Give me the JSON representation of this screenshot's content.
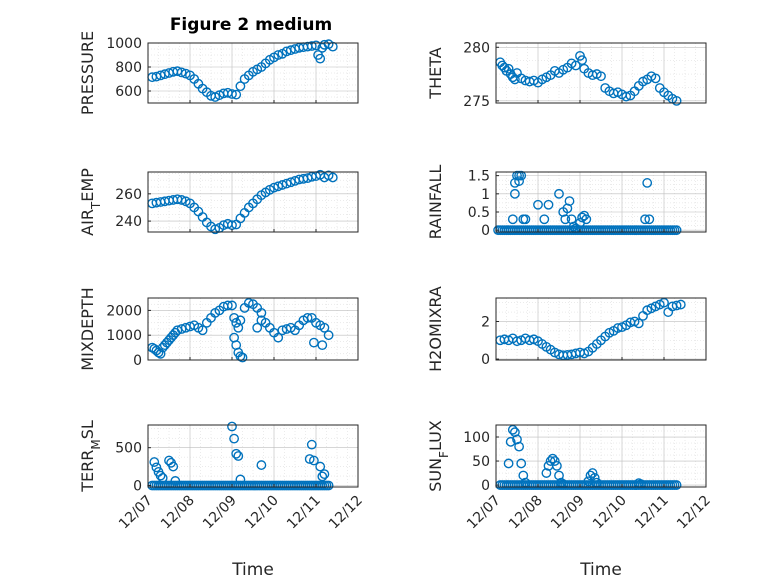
{
  "figure": {
    "title": "Figure 2 medium",
    "marker_color": "#0072BD",
    "x_tick_labels": [
      "12/07",
      "12/08",
      "12/09",
      "12/10",
      "12/11",
      "12/12"
    ],
    "x_label": "Time"
  },
  "chart_data": [
    {
      "type": "scatter",
      "title": "Figure 2 medium",
      "ylabel": "PRESSURE",
      "xlabel": "",
      "xlim": [
        0,
        5
      ],
      "ylim": [
        500,
        1000
      ],
      "yticks": [
        600,
        800,
        1000
      ],
      "ytick_labels": [
        "600",
        "800",
        "1000"
      ],
      "xticks": [
        0,
        1,
        2,
        3,
        4,
        5
      ],
      "grid": true,
      "x": [
        0.1,
        0.2,
        0.3,
        0.4,
        0.5,
        0.6,
        0.7,
        0.8,
        0.9,
        1.0,
        1.1,
        1.2,
        1.3,
        1.4,
        1.5,
        1.6,
        1.7,
        1.8,
        1.9,
        2.0,
        2.1,
        2.2,
        2.3,
        2.4,
        2.5,
        2.6,
        2.7,
        2.8,
        2.9,
        3.0,
        3.1,
        3.2,
        3.3,
        3.4,
        3.5,
        3.6,
        3.7,
        3.8,
        3.9,
        4.0,
        4.05,
        4.1,
        4.15,
        4.2,
        4.3,
        4.4
      ],
      "y": [
        715,
        720,
        730,
        740,
        750,
        760,
        765,
        755,
        745,
        730,
        700,
        660,
        620,
        590,
        560,
        550,
        565,
        580,
        585,
        575,
        570,
        640,
        700,
        730,
        760,
        780,
        800,
        830,
        860,
        880,
        900,
        910,
        930,
        940,
        950,
        960,
        965,
        970,
        975,
        980,
        900,
        870,
        960,
        985,
        990,
        970
      ]
    },
    {
      "type": "scatter",
      "ylabel": "THETA",
      "xlabel": "",
      "xlim": [
        0,
        5
      ],
      "ylim": [
        274.8,
        280.4
      ],
      "yticks": [
        275,
        280
      ],
      "ytick_labels": [
        "275",
        "280"
      ],
      "xticks": [
        0,
        1,
        2,
        3,
        4,
        5
      ],
      "grid": true,
      "x": [
        0.1,
        0.15,
        0.2,
        0.25,
        0.3,
        0.35,
        0.4,
        0.45,
        0.5,
        0.6,
        0.7,
        0.8,
        0.9,
        1.0,
        1.1,
        1.2,
        1.3,
        1.4,
        1.5,
        1.6,
        1.7,
        1.8,
        1.9,
        2.0,
        2.05,
        2.1,
        2.2,
        2.3,
        2.4,
        2.5,
        2.6,
        2.7,
        2.8,
        2.9,
        3.0,
        3.1,
        3.2,
        3.3,
        3.4,
        3.5,
        3.6,
        3.7,
        3.8,
        3.9,
        4.0,
        4.1,
        4.2,
        4.3
      ],
      "y": [
        278.6,
        278.3,
        278.1,
        277.8,
        278.0,
        277.5,
        277.2,
        277.0,
        277.6,
        277.1,
        276.9,
        276.8,
        276.9,
        276.7,
        277.0,
        277.2,
        277.4,
        277.8,
        277.6,
        277.9,
        278.1,
        278.5,
        278.3,
        279.2,
        278.8,
        278.0,
        277.6,
        277.4,
        277.5,
        277.3,
        276.2,
        275.9,
        275.7,
        275.8,
        275.6,
        275.4,
        275.5,
        275.9,
        276.4,
        276.8,
        277.0,
        277.3,
        277.1,
        276.2,
        275.8,
        275.5,
        275.2,
        275.0
      ]
    },
    {
      "type": "scatter",
      "ylabel": "AIR_TEMP",
      "xlabel": "",
      "xlim": [
        0,
        5
      ],
      "ylim": [
        232,
        276
      ],
      "yticks": [
        240,
        260
      ],
      "ytick_labels": [
        "240",
        "260"
      ],
      "xticks": [
        0,
        1,
        2,
        3,
        4,
        5
      ],
      "grid": true,
      "x": [
        0.1,
        0.2,
        0.3,
        0.4,
        0.5,
        0.6,
        0.7,
        0.8,
        0.9,
        1.0,
        1.1,
        1.2,
        1.3,
        1.4,
        1.5,
        1.6,
        1.7,
        1.8,
        1.9,
        2.0,
        2.1,
        2.2,
        2.3,
        2.4,
        2.5,
        2.6,
        2.7,
        2.8,
        2.9,
        3.0,
        3.1,
        3.2,
        3.3,
        3.4,
        3.5,
        3.6,
        3.7,
        3.8,
        3.9,
        4.0,
        4.1,
        4.2,
        4.3,
        4.4
      ],
      "y": [
        253,
        253.5,
        254,
        254.5,
        255,
        255.5,
        256,
        255.5,
        254.5,
        253,
        250,
        247,
        243,
        239,
        236,
        234,
        235,
        237,
        238,
        237,
        237.5,
        242,
        246,
        250,
        253,
        256,
        259,
        261,
        263,
        264.5,
        265.5,
        266.5,
        267.5,
        268.5,
        269.5,
        270.5,
        271,
        271.5,
        272.5,
        273,
        274,
        272,
        273.5,
        272
      ]
    },
    {
      "type": "scatter",
      "ylabel": "RAINFALL",
      "xlabel": "",
      "xlim": [
        0,
        5
      ],
      "ylim": [
        -0.05,
        1.6
      ],
      "yticks": [
        0,
        0.5,
        1,
        1.5
      ],
      "ytick_labels": [
        "0",
        "0.5",
        "1",
        "1.5"
      ],
      "xticks": [
        0,
        1,
        2,
        3,
        4,
        5
      ],
      "grid": true,
      "x": [
        0.05,
        0.1,
        0.15,
        0.2,
        0.25,
        0.3,
        0.35,
        0.4,
        0.45,
        0.5,
        0.55,
        0.6,
        0.65,
        0.7,
        0.75,
        0.8,
        0.85,
        0.9,
        0.95,
        1.0,
        1.05,
        1.1,
        1.15,
        1.2,
        1.25,
        1.3,
        1.35,
        1.4,
        1.45,
        1.5,
        1.55,
        1.6,
        1.65,
        1.7,
        1.75,
        1.8,
        1.85,
        1.9,
        1.95,
        2.0,
        2.05,
        2.1,
        2.15,
        2.2,
        2.25,
        2.3,
        2.35,
        2.4,
        2.45,
        2.5,
        2.55,
        2.6,
        2.65,
        2.7,
        2.75,
        2.8,
        2.85,
        2.9,
        2.95,
        3.0,
        3.05,
        3.1,
        3.15,
        3.2,
        3.25,
        3.3,
        3.35,
        3.4,
        3.45,
        3.5,
        3.55,
        3.6,
        3.65,
        3.7,
        3.75,
        3.8,
        3.85,
        3.9,
        3.95,
        4.0,
        4.05,
        4.1,
        4.15,
        4.2,
        4.25,
        4.3,
        0.45,
        0.5,
        0.55,
        0.6,
        0.65,
        0.7,
        0.4,
        0.45,
        0.55,
        1.0,
        1.15,
        1.25,
        1.5,
        1.6,
        1.7,
        1.75,
        1.8,
        1.85,
        1.65,
        1.9,
        2.0,
        2.05,
        2.1,
        2.15,
        3.6,
        3.65,
        3.55
      ],
      "y": [
        0,
        0,
        0,
        0,
        0,
        0,
        0,
        0,
        0,
        0,
        0,
        0,
        0,
        0,
        0,
        0,
        0,
        0,
        0,
        0,
        0,
        0,
        0,
        0,
        0,
        0,
        0,
        0,
        0,
        0,
        0,
        0,
        0,
        0,
        0,
        0,
        0,
        0,
        0,
        0,
        0,
        0,
        0,
        0,
        0,
        0,
        0,
        0,
        0,
        0,
        0,
        0,
        0,
        0,
        0,
        0,
        0,
        0,
        0,
        0,
        0,
        0,
        0,
        0,
        0,
        0,
        0,
        0,
        0,
        0,
        0,
        0,
        0,
        0,
        0,
        0,
        0,
        0,
        0,
        0,
        0,
        0,
        0,
        0,
        0,
        0,
        1.3,
        1.5,
        1.5,
        1.5,
        0.3,
        0.3,
        0.3,
        1.0,
        1.35,
        0.7,
        0.3,
        0.7,
        1.0,
        0.5,
        0.6,
        0.8,
        0.3,
        0.1,
        0.3,
        0.05,
        0.2,
        0.35,
        0.4,
        0.3,
        1.3,
        0.3,
        0.3
      ]
    },
    {
      "type": "scatter",
      "ylabel": "MIXDEPTH",
      "xlabel": "",
      "xlim": [
        0,
        5
      ],
      "ylim": [
        0,
        2500
      ],
      "yticks": [
        0,
        1000,
        2000
      ],
      "ytick_labels": [
        "0",
        "1000",
        "2000"
      ],
      "xticks": [
        0,
        1,
        2,
        3,
        4,
        5
      ],
      "grid": true,
      "x": [
        0.1,
        0.15,
        0.2,
        0.25,
        0.3,
        0.35,
        0.4,
        0.45,
        0.5,
        0.55,
        0.6,
        0.65,
        0.7,
        0.8,
        0.9,
        1.0,
        1.1,
        1.2,
        1.3,
        1.4,
        1.5,
        1.6,
        1.7,
        1.8,
        1.9,
        2.0,
        2.05,
        2.1,
        2.15,
        2.2,
        2.3,
        2.4,
        2.5,
        2.6,
        2.7,
        2.8,
        2.9,
        3.0,
        3.1,
        3.2,
        3.3,
        3.4,
        3.5,
        3.6,
        3.7,
        3.8,
        3.9,
        4.0,
        4.1,
        4.2,
        4.3,
        2.05,
        2.1,
        2.15,
        2.2,
        2.25,
        2.6,
        2.7,
        3.95,
        4.15
      ],
      "y": [
        500,
        450,
        380,
        300,
        250,
        500,
        600,
        700,
        800,
        900,
        1000,
        1100,
        1200,
        1250,
        1300,
        1350,
        1400,
        1300,
        1200,
        1500,
        1700,
        1900,
        2000,
        2150,
        2200,
        2200,
        1700,
        1500,
        1300,
        1600,
        2100,
        2300,
        2250,
        2100,
        1900,
        1500,
        1300,
        1100,
        900,
        1200,
        1250,
        1300,
        1200,
        1400,
        1600,
        1700,
        1700,
        1500,
        1400,
        1300,
        1000,
        900,
        600,
        300,
        150,
        100,
        1300,
        1600,
        700,
        600
      ]
    },
    {
      "type": "scatter",
      "ylabel": "H2OMIXRA",
      "xlabel": "",
      "xlim": [
        0,
        5
      ],
      "ylim": [
        -0.05,
        3.25
      ],
      "yticks": [
        0,
        2
      ],
      "ytick_labels": [
        "0",
        "2"
      ],
      "xticks": [
        0,
        1,
        2,
        3,
        4,
        5
      ],
      "grid": true,
      "x": [
        0.1,
        0.2,
        0.3,
        0.4,
        0.5,
        0.6,
        0.7,
        0.8,
        0.9,
        1.0,
        1.1,
        1.2,
        1.3,
        1.4,
        1.5,
        1.6,
        1.7,
        1.8,
        1.9,
        2.0,
        2.1,
        2.2,
        2.3,
        2.4,
        2.5,
        2.6,
        2.7,
        2.8,
        2.9,
        3.0,
        3.1,
        3.2,
        3.3,
        3.4,
        3.5,
        3.6,
        3.7,
        3.8,
        3.9,
        4.0,
        4.1,
        4.2,
        4.3,
        4.4
      ],
      "y": [
        1.0,
        1.05,
        1.0,
        1.1,
        0.95,
        1.0,
        1.1,
        1.0,
        1.05,
        0.95,
        0.8,
        0.65,
        0.5,
        0.35,
        0.25,
        0.2,
        0.22,
        0.25,
        0.3,
        0.35,
        0.3,
        0.4,
        0.6,
        0.8,
        1.0,
        1.2,
        1.4,
        1.5,
        1.65,
        1.7,
        1.8,
        1.95,
        2.0,
        1.9,
        2.3,
        2.6,
        2.7,
        2.8,
        2.9,
        3.0,
        2.5,
        2.8,
        2.85,
        2.9
      ]
    },
    {
      "type": "scatter",
      "ylabel": "TERR_MSL",
      "xlabel": "Time",
      "xlim": [
        0,
        5
      ],
      "ylim": [
        -20,
        800
      ],
      "yticks": [
        0,
        500
      ],
      "ytick_labels": [
        "0",
        "500"
      ],
      "xticks": [
        0,
        1,
        2,
        3,
        4,
        5
      ],
      "xtick_labels": [
        "12/07",
        "12/08",
        "12/09",
        "12/10",
        "12/11",
        "12/12"
      ],
      "grid": true,
      "x": [
        0.1,
        0.15,
        0.2,
        0.25,
        0.3,
        0.35,
        0.4,
        0.45,
        0.5,
        0.55,
        0.6,
        0.65,
        0.7,
        0.75,
        0.8,
        0.85,
        0.9,
        0.95,
        1.0,
        1.05,
        1.1,
        1.15,
        1.2,
        1.25,
        1.3,
        1.35,
        1.4,
        1.45,
        1.5,
        1.55,
        1.6,
        1.65,
        1.7,
        1.75,
        1.8,
        1.85,
        1.9,
        1.95,
        2.0,
        2.05,
        2.1,
        2.15,
        2.2,
        2.25,
        2.3,
        2.35,
        2.4,
        2.45,
        2.5,
        2.55,
        2.6,
        2.65,
        2.7,
        2.75,
        2.8,
        2.85,
        2.9,
        2.95,
        3.0,
        3.05,
        3.1,
        3.15,
        3.2,
        3.25,
        3.3,
        3.35,
        3.4,
        3.45,
        3.5,
        3.55,
        3.6,
        3.65,
        3.7,
        3.75,
        3.8,
        3.85,
        3.9,
        3.95,
        4.0,
        4.05,
        4.1,
        4.15,
        4.2,
        4.25,
        4.3,
        0.15,
        0.2,
        0.25,
        0.3,
        0.35,
        0.5,
        0.55,
        0.6,
        0.65,
        2.0,
        2.05,
        2.1,
        2.15,
        2.2,
        2.7,
        3.85,
        3.9,
        3.95,
        4.1,
        4.15,
        4.2
      ],
      "y": [
        0,
        0,
        0,
        0,
        0,
        0,
        0,
        0,
        0,
        0,
        0,
        0,
        0,
        0,
        0,
        0,
        0,
        0,
        0,
        0,
        0,
        0,
        0,
        0,
        0,
        0,
        0,
        0,
        0,
        0,
        0,
        0,
        0,
        0,
        0,
        0,
        0,
        0,
        0,
        0,
        0,
        0,
        0,
        0,
        0,
        0,
        0,
        0,
        0,
        0,
        0,
        0,
        0,
        0,
        0,
        0,
        0,
        0,
        0,
        0,
        0,
        0,
        0,
        0,
        0,
        0,
        0,
        0,
        0,
        0,
        0,
        0,
        0,
        0,
        0,
        0,
        0,
        0,
        0,
        0,
        0,
        0,
        0,
        0,
        0,
        310,
        240,
        180,
        130,
        100,
        330,
        300,
        250,
        60,
        780,
        620,
        420,
        390,
        80,
        270,
        350,
        540,
        330,
        250,
        120,
        150
      ]
    },
    {
      "type": "scatter",
      "ylabel": "SUN_FLUX",
      "xlabel": "Time",
      "xlim": [
        0,
        5
      ],
      "ylim": [
        -4,
        125
      ],
      "yticks": [
        0,
        50,
        100
      ],
      "ytick_labels": [
        "0",
        "50",
        "100"
      ],
      "xticks": [
        0,
        1,
        2,
        3,
        4,
        5
      ],
      "xtick_labels": [
        "12/07",
        "12/08",
        "12/09",
        "12/10",
        "12/11",
        "12/12"
      ],
      "grid": true,
      "x": [
        0.1,
        0.15,
        0.2,
        0.25,
        0.3,
        0.35,
        0.4,
        0.45,
        0.5,
        0.55,
        0.6,
        0.65,
        0.7,
        0.75,
        0.8,
        0.85,
        0.9,
        0.95,
        1.0,
        1.05,
        1.1,
        1.15,
        1.2,
        1.25,
        1.3,
        1.35,
        1.4,
        1.45,
        1.5,
        1.55,
        1.6,
        1.65,
        1.7,
        1.75,
        1.8,
        1.85,
        1.9,
        1.95,
        2.0,
        2.05,
        2.1,
        2.15,
        2.2,
        2.25,
        2.3,
        2.35,
        2.4,
        2.45,
        2.5,
        2.55,
        2.6,
        2.65,
        2.7,
        2.75,
        2.8,
        2.85,
        2.9,
        2.95,
        3.0,
        3.05,
        3.1,
        3.15,
        3.2,
        3.25,
        3.3,
        3.35,
        3.4,
        3.45,
        3.5,
        3.55,
        3.6,
        3.65,
        3.7,
        3.75,
        3.8,
        3.85,
        3.9,
        3.95,
        4.0,
        4.05,
        4.1,
        4.15,
        4.2,
        4.25,
        4.3,
        0.3,
        0.35,
        0.4,
        0.45,
        0.5,
        0.55,
        0.6,
        0.65,
        0.7,
        1.2,
        1.25,
        1.3,
        1.35,
        1.4,
        1.45,
        1.5,
        1.55,
        1.6,
        2.2,
        2.25,
        2.3,
        2.35,
        2.4,
        3.4,
        3.45
      ],
      "y": [
        0,
        0,
        0,
        0,
        0,
        0,
        0,
        0,
        0,
        0,
        0,
        0,
        0,
        0,
        0,
        0,
        0,
        0,
        0,
        0,
        0,
        0,
        0,
        0,
        0,
        0,
        0,
        0,
        0,
        0,
        0,
        0,
        0,
        0,
        0,
        0,
        0,
        0,
        0,
        0,
        0,
        0,
        0,
        0,
        0,
        0,
        0,
        0,
        0,
        0,
        0,
        0,
        0,
        0,
        0,
        0,
        0,
        0,
        0,
        0,
        0,
        0,
        0,
        0,
        0,
        0,
        0,
        0,
        0,
        0,
        0,
        0,
        0,
        0,
        0,
        0,
        0,
        0,
        0,
        0,
        0,
        0,
        0,
        0,
        0,
        45,
        90,
        115,
        110,
        95,
        80,
        45,
        20,
        5,
        25,
        40,
        50,
        55,
        50,
        40,
        20,
        5,
        2,
        8,
        20,
        25,
        15,
        5,
        4,
        2
      ]
    }
  ]
}
